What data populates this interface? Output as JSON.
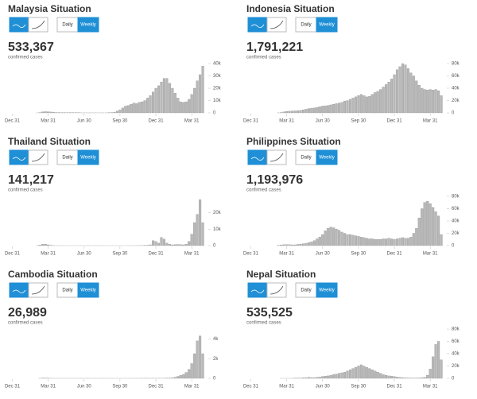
{
  "chart_data": [
    {
      "type": "bar",
      "title": "Malaysia Situation",
      "total": "533,367",
      "total_label": "confirmed cases",
      "buttons": [
        "Daily",
        "Weekly"
      ],
      "color": "#b8b8b8",
      "x": [
        0,
        1,
        2,
        3,
        4,
        5,
        6,
        7,
        8,
        9,
        10,
        11,
        12,
        13,
        14,
        15,
        16,
        17,
        18,
        19,
        20,
        21,
        22,
        23,
        24,
        25,
        26,
        27,
        28,
        29,
        30,
        31,
        32,
        33,
        34,
        35,
        36,
        37,
        38,
        39,
        40,
        41,
        42,
        43,
        44,
        45,
        46,
        47,
        48,
        49,
        50,
        51,
        52,
        53,
        54,
        55,
        56,
        57,
        58,
        59,
        60,
        61,
        62,
        63,
        64,
        65,
        66,
        67,
        68,
        69
      ],
      "values": [
        0,
        0,
        0,
        0,
        0,
        0,
        0,
        0,
        0,
        10,
        200,
        800,
        1000,
        900,
        700,
        400,
        300,
        200,
        100,
        100,
        100,
        100,
        100,
        100,
        100,
        50,
        50,
        50,
        50,
        50,
        50,
        50,
        50,
        50,
        50,
        100,
        200,
        500,
        1500,
        2500,
        4000,
        5500,
        6000,
        7000,
        8000,
        7500,
        8500,
        9000,
        10000,
        12000,
        14000,
        17000,
        20000,
        22000,
        25000,
        28000,
        28000,
        24000,
        20000,
        16000,
        12000,
        9000,
        8500,
        9000,
        11000,
        15000,
        20000,
        26000,
        31000,
        38000
      ],
      "xlim": [
        -1,
        71
      ],
      "xticks": [
        {
          "value": 0,
          "label": "Dec 31"
        },
        {
          "value": 13,
          "label": "Mar 31"
        },
        {
          "value": 26,
          "label": "Jun 30"
        },
        {
          "value": 39,
          "label": "Sep 30"
        },
        {
          "value": 52,
          "label": "Dec 31"
        },
        {
          "value": 65,
          "label": "Mar 31"
        }
      ],
      "ylim": [
        0,
        40000
      ],
      "yticks": [
        0,
        {
          "value": 10000,
          "label": "10k"
        },
        {
          "value": 20000,
          "label": "20k"
        },
        {
          "value": 30000,
          "label": "30k"
        },
        {
          "value": 40000,
          "label": "40k"
        }
      ]
    },
    {
      "type": "bar",
      "title": "Indonesia Situation",
      "total": "1,791,221",
      "total_label": "confirmed cases",
      "buttons": [
        "Daily",
        "Weekly"
      ],
      "color": "#b8b8b8",
      "x": [
        0,
        1,
        2,
        3,
        4,
        5,
        6,
        7,
        8,
        9,
        10,
        11,
        12,
        13,
        14,
        15,
        16,
        17,
        18,
        19,
        20,
        21,
        22,
        23,
        24,
        25,
        26,
        27,
        28,
        29,
        30,
        31,
        32,
        33,
        34,
        35,
        36,
        37,
        38,
        39,
        40,
        41,
        42,
        43,
        44,
        45,
        46,
        47,
        48,
        49,
        50,
        51,
        52,
        53,
        54,
        55,
        56,
        57,
        58,
        59,
        60,
        61,
        62,
        63,
        64,
        65,
        66,
        67,
        68,
        69
      ],
      "values": [
        0,
        0,
        0,
        0,
        0,
        0,
        0,
        0,
        0,
        0,
        100,
        500,
        1500,
        2500,
        2800,
        3000,
        3300,
        3500,
        4000,
        5000,
        6000,
        7000,
        7500,
        8000,
        9000,
        10000,
        11000,
        11500,
        12000,
        13000,
        14000,
        15000,
        16000,
        17000,
        19000,
        20000,
        22000,
        24000,
        26000,
        28000,
        30000,
        28000,
        26000,
        27000,
        30000,
        33000,
        35000,
        38000,
        42000,
        46000,
        50000,
        55000,
        62000,
        70000,
        75000,
        80000,
        78000,
        72000,
        65000,
        60000,
        52000,
        45000,
        40000,
        38000,
        37000,
        38000,
        37000,
        38000,
        36000,
        28000
      ],
      "xlim": [
        -1,
        71
      ],
      "xticks": [
        {
          "value": 0,
          "label": "Dec 31"
        },
        {
          "value": 13,
          "label": "Mar 31"
        },
        {
          "value": 26,
          "label": "Jun 30"
        },
        {
          "value": 39,
          "label": "Sep 30"
        },
        {
          "value": 52,
          "label": "Dec 31"
        },
        {
          "value": 65,
          "label": "Mar 31"
        }
      ],
      "ylim": [
        0,
        80000
      ],
      "yticks": [
        0,
        {
          "value": 20000,
          "label": "20k"
        },
        {
          "value": 40000,
          "label": "40k"
        },
        {
          "value": 60000,
          "label": "60k"
        },
        {
          "value": 80000,
          "label": "80k"
        }
      ]
    },
    {
      "type": "bar",
      "title": "Thailand Situation",
      "total": "141,217",
      "total_label": "confirmed cases",
      "buttons": [
        "Daily",
        "Weekly"
      ],
      "color": "#b8b8b8",
      "x": [
        0,
        1,
        2,
        3,
        4,
        5,
        6,
        7,
        8,
        9,
        10,
        11,
        12,
        13,
        14,
        15,
        16,
        17,
        18,
        19,
        20,
        21,
        22,
        23,
        24,
        25,
        26,
        27,
        28,
        29,
        30,
        31,
        32,
        33,
        34,
        35,
        36,
        37,
        38,
        39,
        40,
        41,
        42,
        43,
        44,
        45,
        46,
        47,
        48,
        49,
        50,
        51,
        52,
        53,
        54,
        55,
        56,
        57,
        58,
        59,
        60,
        61,
        62,
        63,
        64,
        65,
        66,
        67,
        68,
        69
      ],
      "values": [
        0,
        0,
        0,
        0,
        0,
        0,
        0,
        0,
        0,
        10,
        300,
        800,
        900,
        500,
        200,
        50,
        20,
        20,
        10,
        10,
        10,
        10,
        10,
        10,
        10,
        10,
        10,
        10,
        10,
        10,
        10,
        10,
        10,
        10,
        10,
        10,
        10,
        10,
        10,
        10,
        10,
        10,
        10,
        20,
        20,
        20,
        50,
        50,
        100,
        200,
        500,
        3000,
        2500,
        1500,
        5000,
        4000,
        1500,
        800,
        500,
        600,
        700,
        600,
        500,
        800,
        2500,
        7000,
        14000,
        19000,
        28000,
        14000
      ],
      "xlim": [
        -1,
        71
      ],
      "xticks": [
        {
          "value": 0,
          "label": "Dec 31"
        },
        {
          "value": 13,
          "label": "Mar 31"
        },
        {
          "value": 26,
          "label": "Jun 30"
        },
        {
          "value": 39,
          "label": "Sep 30"
        },
        {
          "value": 52,
          "label": "Dec 31"
        },
        {
          "value": 65,
          "label": "Mar 31"
        }
      ],
      "ylim": [
        0,
        30000
      ],
      "yticks": [
        0,
        {
          "value": 10000,
          "label": "10k"
        },
        {
          "value": 20000,
          "label": "20k"
        }
      ]
    },
    {
      "type": "bar",
      "title": "Philippines Situation",
      "total": "1,193,976",
      "total_label": "confirmed cases",
      "buttons": [
        "Daily",
        "Weekly"
      ],
      "color": "#b8b8b8",
      "x": [
        0,
        1,
        2,
        3,
        4,
        5,
        6,
        7,
        8,
        9,
        10,
        11,
        12,
        13,
        14,
        15,
        16,
        17,
        18,
        19,
        20,
        21,
        22,
        23,
        24,
        25,
        26,
        27,
        28,
        29,
        30,
        31,
        32,
        33,
        34,
        35,
        36,
        37,
        38,
        39,
        40,
        41,
        42,
        43,
        44,
        45,
        46,
        47,
        48,
        49,
        50,
        51,
        52,
        53,
        54,
        55,
        56,
        57,
        58,
        59,
        60,
        61,
        62,
        63,
        64,
        65,
        66,
        67,
        68,
        69
      ],
      "values": [
        0,
        0,
        0,
        0,
        0,
        0,
        0,
        0,
        0,
        0,
        200,
        1000,
        1500,
        1500,
        1500,
        1200,
        1300,
        2000,
        2500,
        3000,
        3500,
        5000,
        6000,
        8000,
        11000,
        14000,
        18000,
        24000,
        28000,
        30000,
        29000,
        27000,
        25000,
        22000,
        20000,
        18000,
        18000,
        17000,
        16000,
        15000,
        14000,
        13000,
        12000,
        11000,
        11000,
        10000,
        10000,
        10000,
        11000,
        11000,
        12000,
        11000,
        10000,
        11000,
        12000,
        13000,
        12000,
        12000,
        14000,
        20000,
        28000,
        45000,
        60000,
        70000,
        72000,
        68000,
        62000,
        55000,
        48000,
        18000
      ],
      "xlim": [
        -1,
        71
      ],
      "xticks": [
        {
          "value": 0,
          "label": "Dec 31"
        },
        {
          "value": 13,
          "label": "Mar 31"
        },
        {
          "value": 26,
          "label": "Jun 30"
        },
        {
          "value": 39,
          "label": "Sep 30"
        },
        {
          "value": 52,
          "label": "Dec 31"
        },
        {
          "value": 65,
          "label": "Mar 31"
        }
      ],
      "ylim": [
        0,
        80000
      ],
      "yticks": [
        0,
        {
          "value": 20000,
          "label": "20k"
        },
        {
          "value": 40000,
          "label": "40k"
        },
        {
          "value": 60000,
          "label": "60k"
        },
        {
          "value": 80000,
          "label": "80k"
        }
      ]
    },
    {
      "type": "bar",
      "title": "Cambodia Situation",
      "total": "26,989",
      "total_label": "confirmed cases",
      "buttons": [
        "Daily",
        "Weekly"
      ],
      "color": "#b8b8b8",
      "x": [
        0,
        1,
        2,
        3,
        4,
        5,
        6,
        7,
        8,
        9,
        10,
        11,
        12,
        13,
        14,
        15,
        16,
        17,
        18,
        19,
        20,
        21,
        22,
        23,
        24,
        25,
        26,
        27,
        28,
        29,
        30,
        31,
        32,
        33,
        34,
        35,
        36,
        37,
        38,
        39,
        40,
        41,
        42,
        43,
        44,
        45,
        46,
        47,
        48,
        49,
        50,
        51,
        52,
        53,
        54,
        55,
        56,
        57,
        58,
        59,
        60,
        61,
        62,
        63,
        64,
        65,
        66,
        67,
        68,
        69
      ],
      "values": [
        0,
        0,
        0,
        0,
        0,
        0,
        0,
        0,
        0,
        0,
        5,
        20,
        30,
        20,
        10,
        5,
        5,
        5,
        5,
        5,
        5,
        5,
        5,
        5,
        5,
        5,
        5,
        5,
        5,
        5,
        5,
        5,
        5,
        5,
        5,
        5,
        5,
        5,
        5,
        5,
        5,
        5,
        5,
        5,
        5,
        5,
        5,
        10,
        10,
        10,
        10,
        10,
        10,
        10,
        10,
        10,
        20,
        30,
        50,
        100,
        200,
        300,
        400,
        600,
        900,
        1500,
        2500,
        3800,
        4300,
        2500
      ],
      "xlim": [
        -1,
        71
      ],
      "xticks": [
        {
          "value": 0,
          "label": "Dec 31"
        },
        {
          "value": 13,
          "label": "Mar 31"
        },
        {
          "value": 26,
          "label": "Jun 30"
        },
        {
          "value": 39,
          "label": "Sep 30"
        },
        {
          "value": 52,
          "label": "Dec 31"
        },
        {
          "value": 65,
          "label": "Mar 31"
        }
      ],
      "ylim": [
        0,
        5000
      ],
      "yticks": [
        0,
        {
          "value": 2000,
          "label": "2k"
        },
        {
          "value": 4000,
          "label": "4k"
        }
      ]
    },
    {
      "type": "bar",
      "title": "Nepal Situation",
      "total": "535,525",
      "total_label": "confirmed cases",
      "buttons": [
        "Daily",
        "Weekly"
      ],
      "color": "#b8b8b8",
      "x": [
        0,
        1,
        2,
        3,
        4,
        5,
        6,
        7,
        8,
        9,
        10,
        11,
        12,
        13,
        14,
        15,
        16,
        17,
        18,
        19,
        20,
        21,
        22,
        23,
        24,
        25,
        26,
        27,
        28,
        29,
        30,
        31,
        32,
        33,
        34,
        35,
        36,
        37,
        38,
        39,
        40,
        41,
        42,
        43,
        44,
        45,
        46,
        47,
        48,
        49,
        50,
        51,
        52,
        53,
        54,
        55,
        56,
        57,
        58,
        59,
        60,
        61,
        62,
        63,
        64,
        65,
        66,
        67,
        68,
        69
      ],
      "values": [
        0,
        0,
        0,
        0,
        0,
        0,
        0,
        0,
        0,
        0,
        0,
        10,
        20,
        30,
        50,
        100,
        200,
        300,
        500,
        800,
        1000,
        1500,
        1200,
        1000,
        1500,
        2000,
        3000,
        3500,
        4000,
        5000,
        6000,
        7000,
        8000,
        9000,
        10000,
        12000,
        14000,
        16000,
        18000,
        20000,
        22000,
        20000,
        18000,
        16000,
        14000,
        12000,
        10000,
        8000,
        6000,
        5000,
        4000,
        3500,
        3000,
        2000,
        1500,
        1000,
        800,
        600,
        500,
        500,
        500,
        600,
        800,
        1500,
        5000,
        15000,
        35000,
        55000,
        60000,
        30000
      ],
      "xlim": [
        -1,
        71
      ],
      "xticks": [
        {
          "value": 0,
          "label": "Dec 31"
        },
        {
          "value": 13,
          "label": "Mar 31"
        },
        {
          "value": 26,
          "label": "Jun 30"
        },
        {
          "value": 39,
          "label": "Sep 30"
        },
        {
          "value": 52,
          "label": "Dec 31"
        },
        {
          "value": 65,
          "label": "Mar 31"
        }
      ],
      "ylim": [
        0,
        80000
      ],
      "yticks": [
        0,
        {
          "value": 20000,
          "label": "20k"
        },
        {
          "value": 40000,
          "label": "40k"
        },
        {
          "value": 60000,
          "label": "60k"
        },
        {
          "value": 80000,
          "label": "80k"
        }
      ]
    }
  ]
}
